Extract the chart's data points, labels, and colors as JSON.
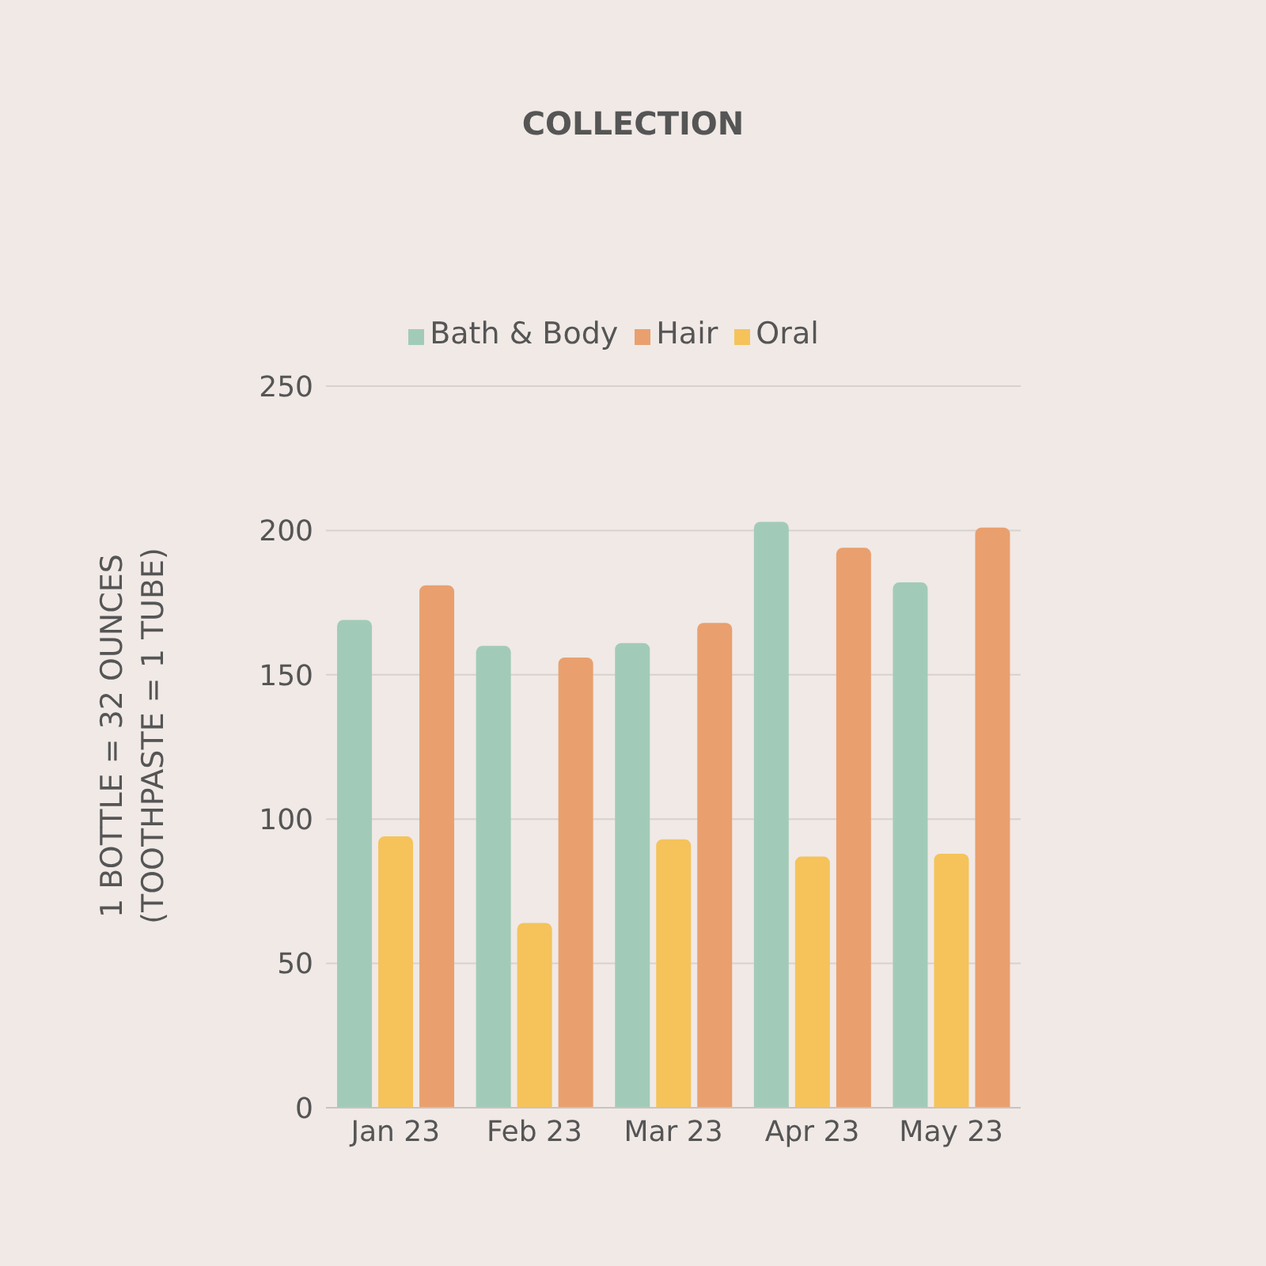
{
  "chart_data": {
    "type": "bar",
    "title": "COLLECTION",
    "ylabel": "1 BOTTLE = 32 OUNCES\n(TOOTHPASTE = 1 TUBE)",
    "categories": [
      "Jan 23",
      "Feb 23",
      "Mar 23",
      "Apr 23",
      "May 23"
    ],
    "series": [
      {
        "name": "Bath & Body",
        "color": "#a1cbb8",
        "values": [
          169,
          160,
          161,
          203,
          182
        ]
      },
      {
        "name": "Oral",
        "color": "#f5c35a",
        "values": [
          94,
          64,
          93,
          87,
          88
        ]
      },
      {
        "name": "Hair",
        "color": "#e9a06e",
        "values": [
          181,
          156,
          168,
          194,
          201
        ]
      }
    ],
    "ylim": [
      0,
      250
    ],
    "yticks": [
      0,
      50,
      100,
      150,
      200,
      250
    ],
    "grid": "y",
    "legend": "top"
  }
}
